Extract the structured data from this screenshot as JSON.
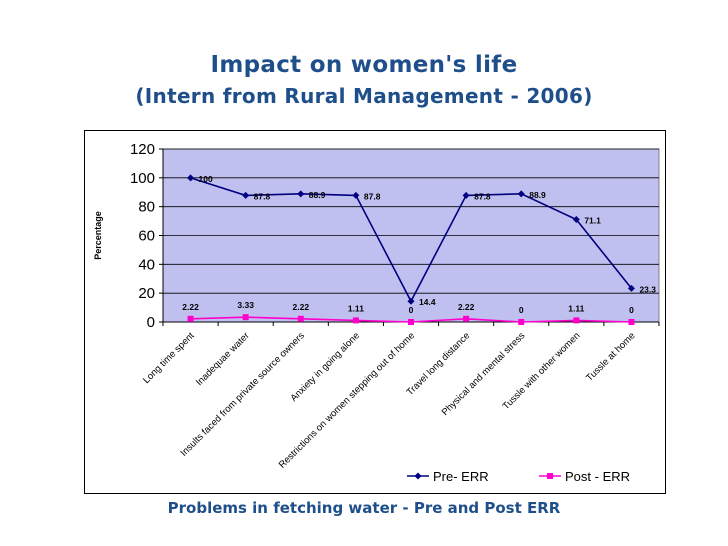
{
  "slide": {
    "title": "Impact on women's life",
    "subtitle": "(Intern from Rural Management - 2006)",
    "caption": "Problems in fetching water - Pre and Post ERR"
  },
  "colors": {
    "title": "#1f4f8b",
    "plot_bg": "#c0c0f0",
    "pre_series": "#000080",
    "post_series": "#ff00cc"
  },
  "chart_data": {
    "type": "line",
    "title": "",
    "xlabel": "",
    "ylabel": "Percentage",
    "ylim": [
      0,
      120
    ],
    "yticks": [
      0,
      20,
      40,
      60,
      80,
      100,
      120
    ],
    "grid": true,
    "legend_position": "bottom-right",
    "categories": [
      "Long time spent",
      "Inadequae water",
      "Insults faced from private source owners",
      "Anxiety in going alone",
      "Restrictions on women stepping out of home",
      "Travel long distance",
      "Physical and mental stress",
      "Tussle with other women",
      "Tussle at home"
    ],
    "series": [
      {
        "name": "Pre- ERR",
        "values": [
          100,
          87.8,
          88.9,
          87.8,
          14.4,
          87.8,
          88.9,
          71.1,
          23.3
        ],
        "labels": [
          "100",
          "87.8",
          "88.9",
          "87.8",
          "14.4",
          "87.8",
          "88.9",
          "71.1",
          "23.3"
        ]
      },
      {
        "name": "Post - ERR",
        "values": [
          2.22,
          3.33,
          2.22,
          1.11,
          0,
          2.22,
          0,
          1.11,
          0
        ],
        "labels": [
          "2.22",
          "3.33",
          "2.22",
          "1.11",
          "0",
          "2.22",
          "0",
          "1.11",
          "0"
        ]
      }
    ]
  }
}
